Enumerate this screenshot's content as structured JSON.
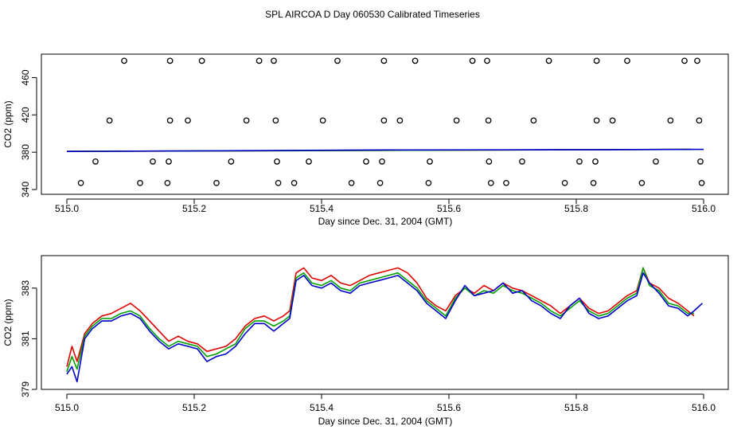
{
  "title": "SPL AIRCOA D  Day 060530  Calibrated Timeseries",
  "chart_data": [
    {
      "type": "scatter",
      "xlabel": "Day since Dec. 31, 2004 (GMT)",
      "ylabel": "CO2 (ppm)",
      "xlim": [
        515.0,
        516.0
      ],
      "ylim": [
        340,
        480
      ],
      "xticks": [
        515.0,
        515.2,
        515.4,
        515.6,
        515.8,
        516.0
      ],
      "xtick_labels": [
        "515.0",
        "515.2",
        "515.4",
        "515.6",
        "515.8",
        "516.0"
      ],
      "yticks": [
        340,
        380,
        420,
        460
      ],
      "ytick_labels": [
        "340",
        "380",
        "420",
        "460"
      ],
      "points_high": [
        515.09,
        515.162,
        515.212,
        515.302,
        515.325,
        515.425,
        515.498,
        515.547,
        515.637,
        515.66,
        515.757,
        515.832,
        515.88,
        515.97,
        515.99
      ],
      "high_value": 478,
      "points_mid": [
        515.067,
        515.162,
        515.19,
        515.282,
        515.328,
        515.402,
        515.498,
        515.523,
        515.612,
        515.662,
        515.733,
        515.832,
        515.857,
        515.948,
        515.993
      ],
      "mid_value": 414,
      "points_low_a": [
        515.045,
        515.135,
        515.16,
        515.258,
        515.33,
        515.38,
        515.47,
        515.495,
        515.57,
        515.663,
        515.715,
        515.805,
        515.83,
        515.925,
        515.995
      ],
      "low_a_value": 370,
      "points_low_b": [
        515.022,
        515.115,
        515.158,
        515.235,
        515.332,
        515.357,
        515.447,
        515.492,
        515.568,
        515.666,
        515.69,
        515.782,
        515.827,
        515.903,
        515.997
      ],
      "low_b_value": 347,
      "series": [
        {
          "name": "Red",
          "color": "#e00000",
          "x": [
            515.0,
            515.98
          ],
          "y": [
            380.9,
            383.0
          ]
        },
        {
          "name": "Green",
          "color": "#00a000",
          "x": [
            515.0,
            515.98
          ],
          "y": [
            380.9,
            383.0
          ]
        },
        {
          "name": "Blue",
          "color": "#0000cc",
          "x": [
            515.0,
            515.25,
            515.5,
            515.75,
            516.0
          ],
          "y": [
            380.8,
            381.6,
            382.4,
            382.6,
            383.0
          ]
        }
      ]
    },
    {
      "type": "line",
      "xlabel": "Day since Dec. 31, 2004 (GMT)",
      "ylabel": "CO2 (ppm)",
      "xlim": [
        515.0,
        516.0
      ],
      "ylim": [
        379,
        384
      ],
      "xticks": [
        515.0,
        515.2,
        515.4,
        515.6,
        515.8,
        516.0
      ],
      "xtick_labels": [
        "515.0",
        "515.2",
        "515.4",
        "515.6",
        "515.8",
        "516.0"
      ],
      "yticks": [
        379,
        381,
        383
      ],
      "ytick_labels": [
        "379",
        "381",
        "383"
      ],
      "series": [
        {
          "name": "Red",
          "color": "#e00000",
          "x": [
            515.0,
            515.008,
            515.016,
            515.028,
            515.04,
            515.055,
            515.07,
            515.085,
            515.1,
            515.115,
            515.13,
            515.145,
            515.16,
            515.175,
            515.19,
            515.205,
            515.22,
            515.235,
            515.25,
            515.265,
            515.28,
            515.295,
            515.31,
            515.325,
            515.34,
            515.35,
            515.36,
            515.372,
            515.385,
            515.4,
            515.415,
            515.43,
            515.445,
            515.46,
            515.475,
            515.49,
            515.505,
            515.52,
            515.535,
            515.55,
            515.565,
            515.58,
            515.595,
            515.61,
            515.625,
            515.64,
            515.655,
            515.67,
            515.685,
            515.7,
            515.715,
            515.73,
            515.745,
            515.76,
            515.775,
            515.79,
            515.805,
            515.82,
            515.835,
            515.85,
            515.865,
            515.88,
            515.895,
            515.905,
            515.915,
            515.93,
            515.945,
            515.96,
            515.975,
            515.985
          ],
          "y": [
            379.9,
            380.7,
            380.1,
            381.2,
            381.6,
            381.9,
            382.0,
            382.2,
            382.4,
            382.1,
            381.7,
            381.3,
            380.9,
            381.1,
            380.9,
            380.8,
            380.5,
            380.6,
            380.7,
            381.0,
            381.5,
            381.8,
            381.9,
            381.7,
            381.9,
            382.1,
            383.6,
            383.8,
            383.4,
            383.3,
            383.5,
            383.2,
            383.1,
            383.3,
            383.5,
            383.6,
            383.7,
            383.8,
            383.6,
            383.2,
            382.6,
            382.3,
            382.1,
            382.7,
            383.0,
            382.8,
            383.1,
            382.9,
            383.2,
            383.0,
            382.9,
            382.7,
            382.5,
            382.3,
            382.0,
            382.3,
            382.6,
            382.2,
            382.0,
            382.1,
            382.4,
            382.7,
            382.9,
            383.8,
            383.2,
            383.0,
            382.6,
            382.4,
            382.1,
            381.9
          ]
        },
        {
          "name": "Green",
          "color": "#00a000",
          "x": [
            515.0,
            515.008,
            515.016,
            515.028,
            515.04,
            515.055,
            515.07,
            515.085,
            515.1,
            515.115,
            515.13,
            515.145,
            515.16,
            515.175,
            515.19,
            515.205,
            515.22,
            515.235,
            515.25,
            515.265,
            515.28,
            515.295,
            515.31,
            515.325,
            515.34,
            515.35,
            515.36,
            515.372,
            515.385,
            515.4,
            515.415,
            515.43,
            515.445,
            515.46,
            515.475,
            515.49,
            515.505,
            515.52,
            515.535,
            515.55,
            515.565,
            515.58,
            515.595,
            515.61,
            515.625,
            515.64,
            515.655,
            515.67,
            515.685,
            515.7,
            515.715,
            515.73,
            515.745,
            515.76,
            515.775,
            515.79,
            515.805,
            515.82,
            515.835,
            515.85,
            515.865,
            515.88,
            515.895,
            515.905,
            515.915,
            515.93,
            515.945,
            515.96,
            515.975,
            515.985
          ],
          "y": [
            379.7,
            380.3,
            379.8,
            381.1,
            381.5,
            381.8,
            381.8,
            382.0,
            382.1,
            381.9,
            381.4,
            381.0,
            380.7,
            380.9,
            380.8,
            380.7,
            380.3,
            380.4,
            380.6,
            380.8,
            381.4,
            381.7,
            381.7,
            381.5,
            381.7,
            381.9,
            383.4,
            383.6,
            383.2,
            383.1,
            383.3,
            383.0,
            382.9,
            383.2,
            383.3,
            383.4,
            383.5,
            383.6,
            383.3,
            383.0,
            382.5,
            382.2,
            381.9,
            382.6,
            383.0,
            382.7,
            382.9,
            382.8,
            383.1,
            382.9,
            382.8,
            382.6,
            382.4,
            382.1,
            381.9,
            382.2,
            382.5,
            382.1,
            381.9,
            382.0,
            382.3,
            382.6,
            382.8,
            383.8,
            383.1,
            382.9,
            382.4,
            382.3,
            382.0,
            382.0
          ]
        },
        {
          "name": "Blue",
          "color": "#0000cc",
          "x": [
            515.0,
            515.008,
            515.016,
            515.028,
            515.04,
            515.055,
            515.07,
            515.085,
            515.1,
            515.115,
            515.13,
            515.145,
            515.16,
            515.175,
            515.19,
            515.205,
            515.22,
            515.235,
            515.25,
            515.265,
            515.28,
            515.295,
            515.31,
            515.325,
            515.34,
            515.35,
            515.36,
            515.372,
            515.385,
            515.4,
            515.415,
            515.43,
            515.445,
            515.46,
            515.475,
            515.49,
            515.505,
            515.52,
            515.535,
            515.55,
            515.565,
            515.58,
            515.595,
            515.61,
            515.625,
            515.64,
            515.655,
            515.67,
            515.685,
            515.7,
            515.715,
            515.73,
            515.745,
            515.76,
            515.775,
            515.79,
            515.805,
            515.82,
            515.835,
            515.85,
            515.865,
            515.88,
            515.895,
            515.905,
            515.915,
            515.93,
            515.945,
            515.96,
            515.975,
            515.985,
            515.998
          ],
          "y": [
            379.6,
            379.9,
            379.3,
            381.0,
            381.4,
            381.7,
            381.7,
            381.9,
            382.0,
            381.8,
            381.3,
            380.9,
            380.6,
            380.8,
            380.7,
            380.6,
            380.1,
            380.3,
            380.4,
            380.7,
            381.2,
            381.6,
            381.6,
            381.3,
            381.6,
            381.8,
            383.3,
            383.5,
            383.1,
            383.0,
            383.2,
            382.9,
            382.8,
            383.1,
            383.2,
            383.3,
            383.4,
            383.5,
            383.2,
            382.9,
            382.4,
            382.1,
            381.8,
            382.5,
            383.1,
            382.7,
            382.8,
            382.9,
            383.2,
            382.8,
            382.9,
            382.5,
            382.3,
            382.0,
            381.8,
            382.3,
            382.6,
            382.0,
            381.8,
            381.9,
            382.2,
            382.5,
            382.7,
            383.6,
            383.2,
            382.8,
            382.3,
            382.2,
            381.9,
            382.1,
            382.4
          ]
        }
      ]
    }
  ]
}
